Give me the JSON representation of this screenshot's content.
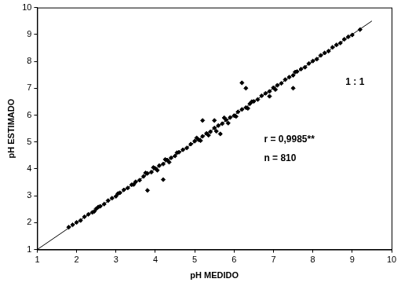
{
  "chart_data": {
    "type": "scatter",
    "x_label": "pH MEDIDO",
    "y_label": "pH ESTIMADO",
    "xlim": [
      1,
      10
    ],
    "ylim": [
      1,
      10
    ],
    "xticks": [
      1,
      2,
      3,
      4,
      5,
      6,
      7,
      8,
      9,
      10
    ],
    "yticks": [
      1,
      2,
      3,
      4,
      5,
      6,
      7,
      8,
      9,
      10
    ],
    "grid": false,
    "annotations": [
      {
        "text": "1 : 1"
      },
      {
        "text": "r = 0,9985**"
      },
      {
        "text": "n = 810"
      }
    ],
    "series": [
      {
        "type": "scatter",
        "marker": "diamond",
        "color": "#000000",
        "x": [
          1.8,
          1.9,
          2.0,
          2.1,
          2.2,
          2.3,
          2.4,
          2.5,
          2.6,
          2.7,
          2.8,
          2.9,
          3.0,
          3.1,
          3.2,
          3.3,
          3.4,
          3.5,
          3.6,
          3.7,
          3.8,
          3.9,
          4.0,
          4.1,
          4.2,
          4.3,
          4.4,
          4.5,
          4.6,
          4.7,
          4.8,
          4.9,
          5.0,
          5.1,
          5.2,
          5.3,
          5.4,
          5.5,
          5.6,
          5.7,
          5.8,
          5.9,
          6.0,
          6.1,
          6.2,
          6.3,
          6.4,
          6.5,
          6.6,
          6.7,
          6.8,
          6.9,
          7.0,
          7.1,
          7.2,
          7.3,
          7.4,
          7.5,
          7.6,
          7.7,
          7.8,
          7.9,
          8.0,
          8.1,
          8.2,
          8.3,
          8.4,
          8.5,
          8.6,
          8.7,
          8.8,
          8.9,
          9.0,
          9.2,
          2.45,
          2.55,
          3.05,
          3.45,
          3.75,
          3.8,
          3.95,
          4.05,
          4.2,
          4.25,
          4.35,
          4.55,
          5.05,
          5.15,
          5.2,
          5.35,
          5.5,
          5.55,
          5.65,
          5.75,
          5.85,
          6.05,
          6.2,
          6.3,
          6.35,
          6.45,
          6.9,
          7.05,
          7.5,
          7.55
        ],
        "values": [
          1.83,
          1.92,
          2.01,
          2.08,
          2.22,
          2.31,
          2.38,
          2.52,
          2.61,
          2.69,
          2.82,
          2.91,
          2.98,
          3.11,
          3.22,
          3.29,
          3.41,
          3.52,
          3.58,
          3.72,
          3.83,
          3.88,
          4.02,
          4.12,
          4.18,
          4.33,
          4.41,
          4.48,
          4.62,
          4.71,
          4.78,
          4.92,
          5.03,
          5.08,
          5.21,
          5.32,
          5.38,
          5.52,
          5.61,
          5.68,
          5.82,
          5.91,
          5.98,
          6.12,
          6.21,
          6.28,
          6.42,
          6.51,
          6.58,
          6.72,
          6.81,
          6.88,
          7.02,
          7.11,
          7.18,
          7.32,
          7.41,
          7.48,
          7.62,
          7.71,
          7.78,
          7.92,
          8.01,
          8.08,
          8.22,
          8.31,
          8.38,
          8.52,
          8.61,
          8.68,
          8.82,
          8.91,
          8.98,
          9.18,
          2.42,
          2.58,
          3.08,
          3.42,
          3.85,
          3.2,
          4.05,
          3.95,
          3.6,
          4.35,
          4.25,
          4.6,
          5.15,
          5.05,
          5.8,
          5.25,
          5.8,
          5.4,
          5.3,
          5.9,
          5.7,
          5.95,
          7.2,
          7.0,
          6.25,
          6.5,
          6.7,
          6.95,
          7.0,
          7.6
        ]
      },
      {
        "type": "line",
        "line_style": "solid",
        "color": "#000000",
        "x": [
          1,
          9.5
        ],
        "values": [
          1,
          9.5
        ]
      }
    ]
  }
}
